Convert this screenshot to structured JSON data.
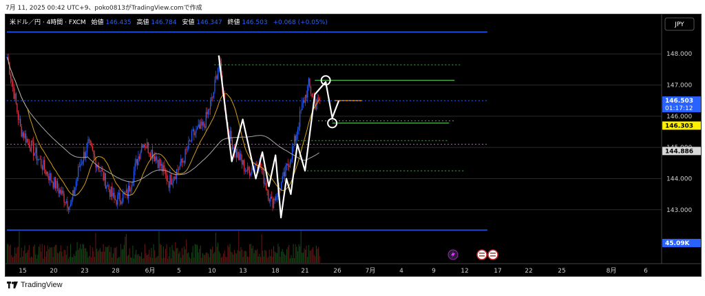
{
  "header": {
    "capture_line": "7月 11, 2025 00:42 UTC+9、poko0813がTradingView.comで作成"
  },
  "legend": {
    "symbol": "米ドル／円 · 4時間 · FXCM",
    "open_label": "始値",
    "open_value": "146.435",
    "high_label": "高値",
    "high_value": "146.784",
    "low_label": "安値",
    "low_value": "146.347",
    "close_label": "終値",
    "close_value": "146.503",
    "change": "+0.068 (+0.05%)"
  },
  "currency_button": "JPY",
  "price_axis": {
    "ticks": [
      "148.000",
      "147.000",
      "146.000",
      "145.000",
      "144.000",
      "143.000"
    ],
    "current_price": "146.503",
    "countdown": "01:17:12",
    "marker_yellow": "146.303",
    "marker_ma": "144.886",
    "volume_label": "45.09K"
  },
  "time_axis": {
    "ticks": [
      "15",
      "20",
      "23",
      "28",
      "6月",
      "5",
      "10",
      "13",
      "18",
      "21",
      "26",
      "7月",
      "4",
      "9",
      "12",
      "17",
      "22",
      "25",
      "8月",
      "6"
    ]
  },
  "footer": {
    "brand": "TradingView"
  },
  "colors": {
    "background": "#000000",
    "bull": "#2962ff",
    "bear": "#f23645",
    "ma_yellow": "#d4a017",
    "ma_gray": "#a8a8a8",
    "zigzag": "#ffffff",
    "green_lines": "#4caf50",
    "orange_line": "#ff9800",
    "blue_lines": "#2962ff",
    "magenta_dotted": "#e040fb"
  },
  "chart_data": {
    "type": "line",
    "title": "米ドル／円 · 4時間 · FXCM",
    "xlabel": "",
    "ylabel": "",
    "ylim": [
      142.3,
      148.7
    ],
    "grid": true,
    "price_scale_side": "right",
    "ohlc_last": {
      "open": 146.435,
      "high": 146.784,
      "low": 146.347,
      "close": 146.503
    },
    "x_ticks": [
      "15",
      "20",
      "23",
      "28",
      "6月",
      "5",
      "10",
      "13",
      "18",
      "21",
      "26",
      "7月",
      "4",
      "9",
      "12",
      "17",
      "22",
      "25",
      "8月",
      "6"
    ],
    "y_ticks": [
      148.0,
      147.0,
      146.0,
      145.0,
      144.0,
      143.0
    ],
    "close_path": [
      {
        "i": 0,
        "c": 147.9
      },
      {
        "i": 12,
        "c": 145.6
      },
      {
        "i": 24,
        "c": 144.9
      },
      {
        "i": 36,
        "c": 144.2
      },
      {
        "i": 48,
        "c": 143.6
      },
      {
        "i": 58,
        "c": 143.1
      },
      {
        "i": 66,
        "c": 144.4
      },
      {
        "i": 74,
        "c": 145.1
      },
      {
        "i": 86,
        "c": 144.2
      },
      {
        "i": 98,
        "c": 143.3
      },
      {
        "i": 110,
        "c": 143.5
      },
      {
        "i": 124,
        "c": 145.2
      },
      {
        "i": 136,
        "c": 144.7
      },
      {
        "i": 148,
        "c": 143.9
      },
      {
        "i": 160,
        "c": 144.5
      },
      {
        "i": 170,
        "c": 145.4
      },
      {
        "i": 180,
        "c": 145.7
      },
      {
        "i": 188,
        "c": 146.6
      },
      {
        "i": 194,
        "c": 147.8
      },
      {
        "i": 202,
        "c": 145.5
      },
      {
        "i": 210,
        "c": 144.8
      },
      {
        "i": 220,
        "c": 144.2
      },
      {
        "i": 230,
        "c": 144.6
      },
      {
        "i": 242,
        "c": 143.2
      },
      {
        "i": 252,
        "c": 143.9
      },
      {
        "i": 262,
        "c": 145.0
      },
      {
        "i": 270,
        "c": 146.3
      },
      {
        "i": 276,
        "c": 147.0
      },
      {
        "i": 282,
        "c": 146.4
      },
      {
        "i": 286,
        "c": 146.5
      }
    ],
    "annotations": {
      "zigzag": [
        {
          "i": 194,
          "p": 147.95
        },
        {
          "i": 206,
          "p": 144.55
        },
        {
          "i": 216,
          "p": 145.9
        },
        {
          "i": 228,
          "p": 144.0
        },
        {
          "i": 234,
          "p": 144.85
        },
        {
          "i": 240,
          "p": 143.75
        },
        {
          "i": 246,
          "p": 144.75
        },
        {
          "i": 251,
          "p": 142.75
        },
        {
          "i": 256,
          "p": 144.0
        },
        {
          "i": 260,
          "p": 143.5
        },
        {
          "i": 266,
          "p": 145.1
        },
        {
          "i": 273,
          "p": 144.25
        },
        {
          "i": 282,
          "p": 146.7
        },
        {
          "i": 292,
          "p": 147.1
        },
        {
          "i": 298,
          "p": 145.95
        },
        {
          "i": 304,
          "p": 146.5
        }
      ],
      "circles": [
        {
          "i": 292,
          "p": 147.15
        },
        {
          "i": 298,
          "p": 145.78
        }
      ],
      "horizontal_lines": [
        {
          "style": "solid",
          "color": "green",
          "price": 147.15,
          "from_i": 282,
          "to_i": 410
        },
        {
          "style": "solid",
          "color": "green",
          "price": 145.78,
          "from_i": 298,
          "to_i": 405
        },
        {
          "style": "solid",
          "color": "orange",
          "price": 146.5,
          "from_i": 300,
          "to_i": 325
        },
        {
          "style": "dotted",
          "color": "green",
          "price": 147.65,
          "from_i": 190,
          "to_i": 415
        },
        {
          "style": "dotted",
          "color": "green",
          "price": 145.85,
          "from_i": 285,
          "to_i": 410
        },
        {
          "style": "dotted",
          "color": "green",
          "price": 145.22,
          "from_i": 260,
          "to_i": 405
        },
        {
          "style": "dotted",
          "color": "green",
          "price": 144.25,
          "from_i": 275,
          "to_i": 420
        },
        {
          "style": "solid",
          "color": "blue",
          "price": 148.7,
          "from_i": 0,
          "to_i": 440
        },
        {
          "style": "solid",
          "color": "blue",
          "price": 142.35,
          "from_i": 0,
          "to_i": 440
        },
        {
          "style": "dotted",
          "color": "magenta",
          "price": 145.1,
          "from_i": 0,
          "to_i": 440
        },
        {
          "style": "dotted",
          "color": "blue",
          "price": 146.5,
          "from_i": 0,
          "to_i": 440
        }
      ]
    }
  }
}
